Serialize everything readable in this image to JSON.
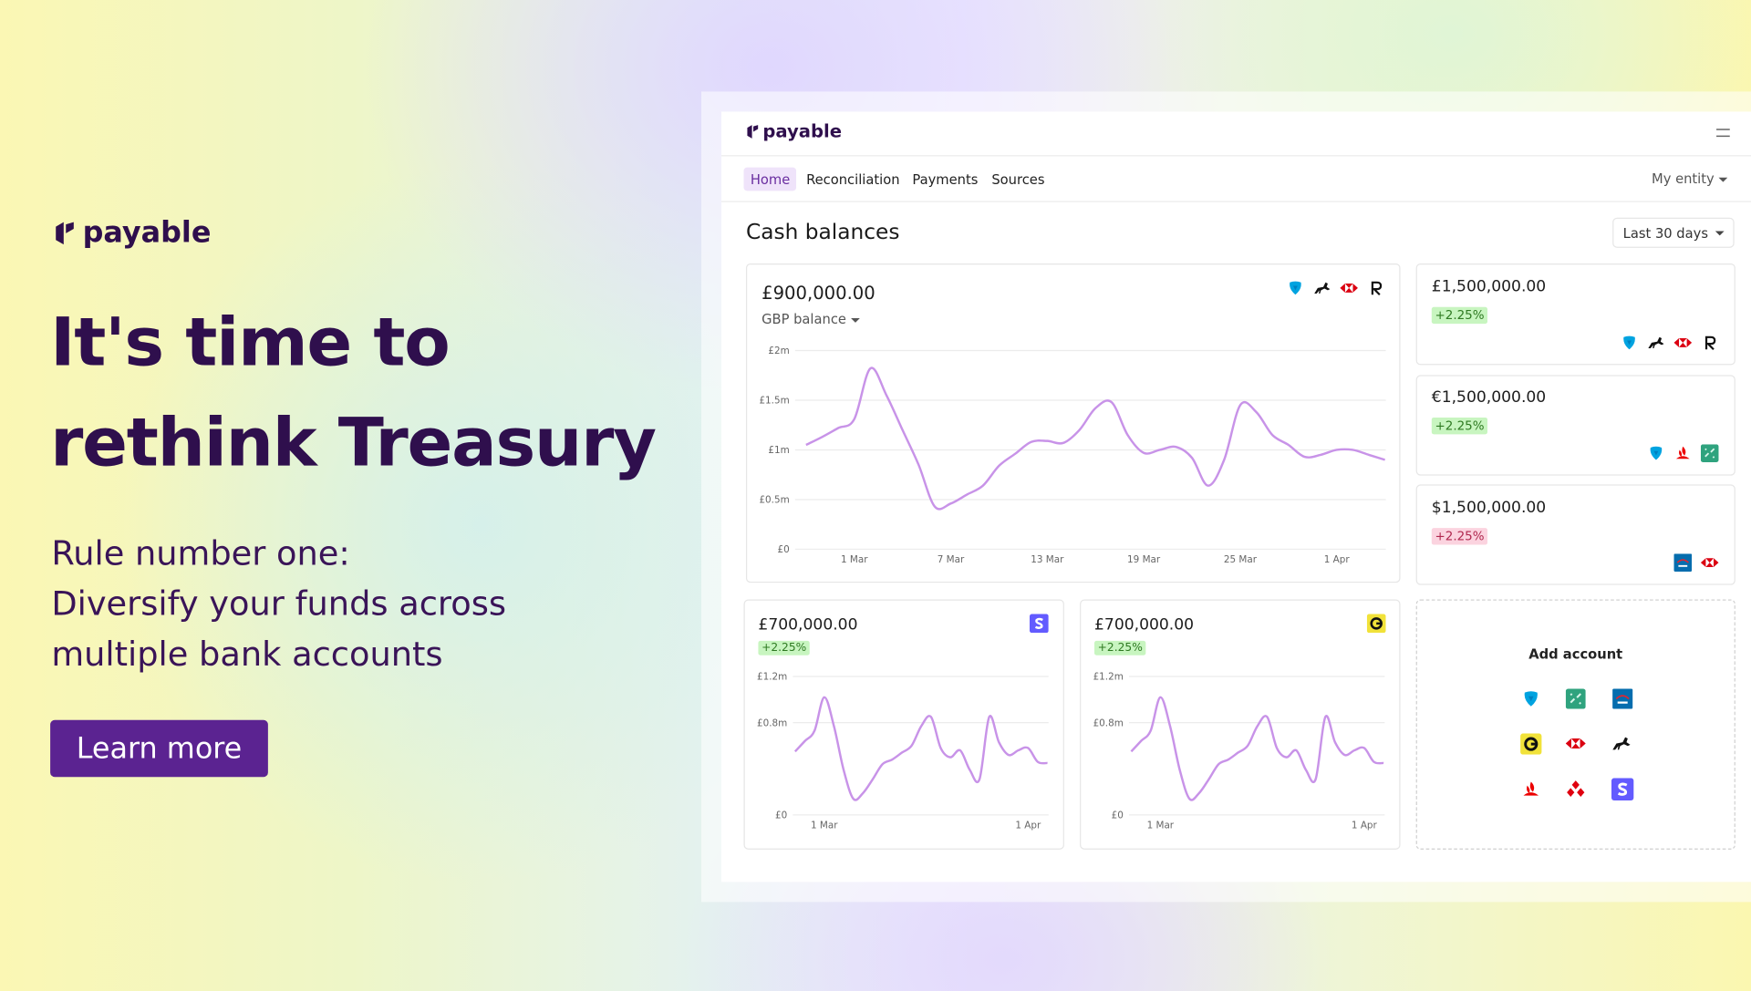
{
  "hero": {
    "logo": "payable",
    "headline": [
      "It's time to",
      "rethink Treasury"
    ],
    "subline": [
      "Rule number one:",
      "Diversify your funds across",
      "multiple bank accounts"
    ],
    "button": "Learn more"
  },
  "app": {
    "logo": "payable",
    "nav": [
      "Home",
      "Reconciliation",
      "Payments",
      "Sources"
    ],
    "entity": "My entity",
    "section_title": "Cash balances",
    "period": "Last 30 days",
    "main_card": {
      "amount": "£900,000.00",
      "label": "GBP balance"
    },
    "accounts": [
      {
        "amount": "£1,500,000.00",
        "change": "+2.25%",
        "badge_color": "#c8f5c0"
      },
      {
        "amount": "€1,500,000.00",
        "change": "+2.25%",
        "badge_color": "#c8f5c0"
      },
      {
        "amount": "$1,500,000.00",
        "change": "+2.25%",
        "badge_color": "#fbd3df"
      }
    ],
    "small_cards": [
      {
        "amount": "£700,000.00",
        "change": "+2.25%"
      },
      {
        "amount": "£700,000.00",
        "change": "+2.25%"
      }
    ],
    "add_account": "Add account"
  },
  "chart_data": [
    {
      "type": "line",
      "categories": [
        null,
        null,
        null,
        "1 Mar",
        null,
        null,
        null,
        null,
        null,
        "7 Mar",
        null,
        null,
        null,
        null,
        null,
        "13 Mar",
        null,
        null,
        null,
        null,
        null,
        "19 Mar",
        null,
        null,
        null,
        null,
        null,
        "25 Mar",
        null,
        null,
        null,
        null,
        null,
        "1 Apr",
        null,
        null,
        null
      ],
      "values": [
        1.05,
        1.13,
        1.22,
        1.31,
        1.82,
        1.55,
        1.2,
        0.85,
        0.43,
        0.46,
        0.55,
        0.64,
        0.84,
        0.96,
        1.08,
        1.09,
        1.07,
        1.2,
        1.42,
        1.48,
        1.15,
        0.97,
        1.0,
        1.03,
        0.92,
        0.64,
        0.9,
        1.45,
        1.38,
        1.15,
        1.05,
        0.93,
        0.95,
        1.0,
        1.0,
        0.95,
        0.9
      ],
      "color": "#c893e8",
      "ylim": [
        0,
        2
      ],
      "yticks": [
        {
          "value": 0,
          "label": "£0"
        },
        {
          "value": 0.5,
          "label": "£0.5m"
        },
        {
          "value": 1,
          "label": "£1m"
        },
        {
          "value": 1.5,
          "label": "£1.5m"
        },
        {
          "value": 2,
          "label": "£2m"
        }
      ],
      "grid": true
    },
    {
      "type": "line",
      "categories": [
        null,
        null,
        null,
        "1 Mar",
        null,
        null,
        null,
        null,
        null,
        null,
        null,
        null,
        null,
        null,
        null,
        null,
        null,
        null,
        null,
        null,
        null,
        null,
        null,
        null,
        "1 Apr",
        null,
        null
      ],
      "values": [
        0.55,
        0.64,
        0.73,
        1.02,
        0.77,
        0.39,
        0.14,
        0.19,
        0.31,
        0.44,
        0.48,
        0.54,
        0.6,
        0.77,
        0.85,
        0.58,
        0.5,
        0.56,
        0.39,
        0.31,
        0.85,
        0.63,
        0.52,
        0.56,
        0.58,
        0.46,
        0.45
      ],
      "color": "#c893e8",
      "ylim": [
        0,
        1.2
      ],
      "yticks": [
        {
          "value": 0,
          "label": "£0"
        },
        {
          "value": 0.8,
          "label": "£0.8m"
        },
        {
          "value": 1.2,
          "label": "£1.2m"
        }
      ],
      "grid": true
    },
    {
      "type": "line",
      "categories": [
        null,
        null,
        null,
        "1 Mar",
        null,
        null,
        null,
        null,
        null,
        null,
        null,
        null,
        null,
        null,
        null,
        null,
        null,
        null,
        null,
        null,
        null,
        null,
        null,
        null,
        "1 Apr",
        null,
        null
      ],
      "values": [
        0.55,
        0.64,
        0.73,
        1.02,
        0.77,
        0.39,
        0.14,
        0.19,
        0.31,
        0.44,
        0.48,
        0.54,
        0.6,
        0.77,
        0.85,
        0.58,
        0.5,
        0.56,
        0.39,
        0.31,
        0.85,
        0.63,
        0.52,
        0.56,
        0.58,
        0.46,
        0.45
      ],
      "color": "#c893e8",
      "ylim": [
        0,
        1.2
      ],
      "yticks": [
        {
          "value": 0,
          "label": "£0"
        },
        {
          "value": 0.8,
          "label": "£0.8m"
        },
        {
          "value": 1.2,
          "label": "£1.2m"
        }
      ],
      "grid": true
    }
  ]
}
